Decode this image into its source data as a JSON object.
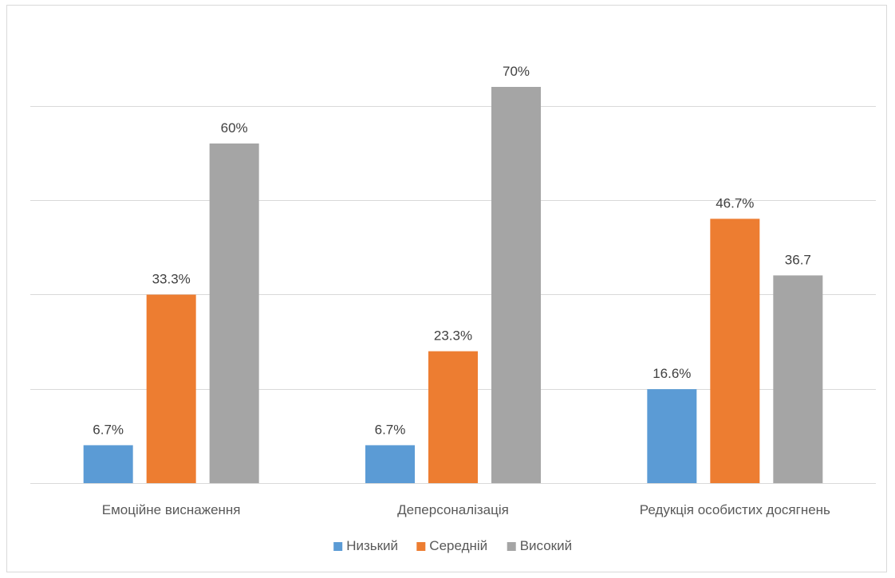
{
  "chart_data": {
    "type": "bar",
    "categories": [
      "Емоційне виснаження",
      "Деперсоналізація",
      "Редукція особистих досягнень"
    ],
    "series": [
      {
        "name": "Низький",
        "color": "#5b9bd5",
        "values": [
          6.7,
          6.7,
          16.6
        ],
        "labels": [
          "6.7%",
          "6.7%",
          "16.6%"
        ]
      },
      {
        "name": "Середній",
        "color": "#ed7d31",
        "values": [
          33.3,
          23.3,
          46.7
        ],
        "labels": [
          "33.3%",
          "23.3%",
          "46.7%"
        ]
      },
      {
        "name": "Високий",
        "color": "#a5a5a5",
        "values": [
          60,
          70,
          36.7
        ],
        "labels": [
          "60%",
          "70%",
          "36.7"
        ]
      }
    ],
    "ylim": [
      0,
      80
    ],
    "ytick_step": 16.67,
    "grid": true,
    "legend_position": "bottom"
  }
}
